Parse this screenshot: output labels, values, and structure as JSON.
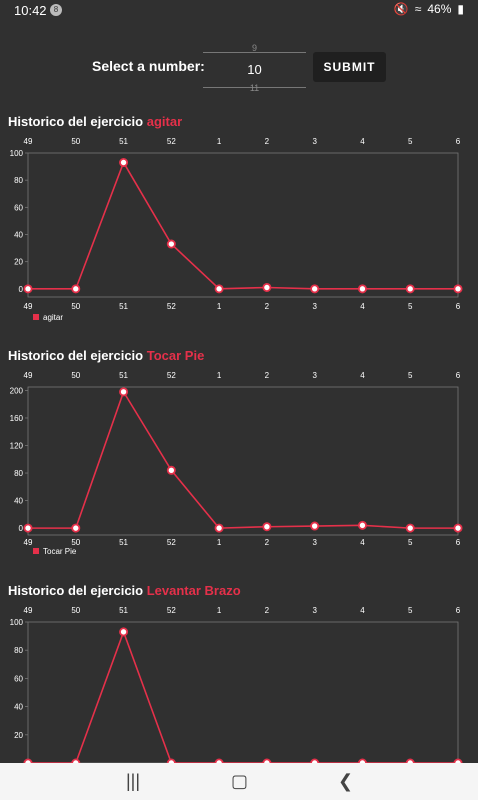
{
  "status": {
    "time": "10:42",
    "battery": "46%",
    "notif_badge": "8"
  },
  "selector": {
    "label": "Select a number:",
    "prev_value": "9",
    "current_value": "10",
    "next_value": "11",
    "submit_label": "SUBMIT"
  },
  "sections": [
    {
      "title_prefix": "Historico del ejercicio",
      "exercise": "agitar"
    },
    {
      "title_prefix": "Historico del ejercicio",
      "exercise": "Tocar Pie"
    },
    {
      "title_prefix": "Historico del ejercicio",
      "exercise": "Levantar Brazo"
    }
  ],
  "colors": {
    "background": "#303030",
    "accent": "#e5304a",
    "grid": "#777777"
  },
  "chart_data": [
    {
      "type": "line",
      "categories": [
        "49",
        "50",
        "51",
        "52",
        "1",
        "2",
        "3",
        "4",
        "5",
        "6"
      ],
      "series": [
        {
          "name": "agitar",
          "values": [
            0,
            0,
            93,
            33,
            0,
            1,
            0,
            0,
            0,
            0
          ]
        }
      ],
      "yticks": [
        0,
        20,
        40,
        60,
        80,
        100
      ],
      "ylim": [
        -6,
        100
      ],
      "legend": "bottom-left"
    },
    {
      "type": "line",
      "categories": [
        "49",
        "50",
        "51",
        "52",
        "1",
        "2",
        "3",
        "4",
        "5",
        "6"
      ],
      "series": [
        {
          "name": "Tocar Pie",
          "values": [
            0,
            0,
            198,
            84,
            0,
            2,
            3,
            4,
            0,
            0
          ]
        }
      ],
      "yticks": [
        0,
        40,
        80,
        120,
        160,
        200
      ],
      "ylim": [
        -10,
        205
      ],
      "legend": "bottom-left"
    },
    {
      "type": "line",
      "categories": [
        "49",
        "50",
        "51",
        "52",
        "1",
        "2",
        "3",
        "4",
        "5",
        "6"
      ],
      "series": [
        {
          "values": [
            0,
            0,
            93,
            0,
            0,
            0,
            0,
            0,
            0,
            0
          ]
        }
      ],
      "yticks": [
        20,
        40,
        60,
        80,
        100
      ],
      "ylim": [
        0,
        100
      ],
      "legend": "none"
    }
  ]
}
